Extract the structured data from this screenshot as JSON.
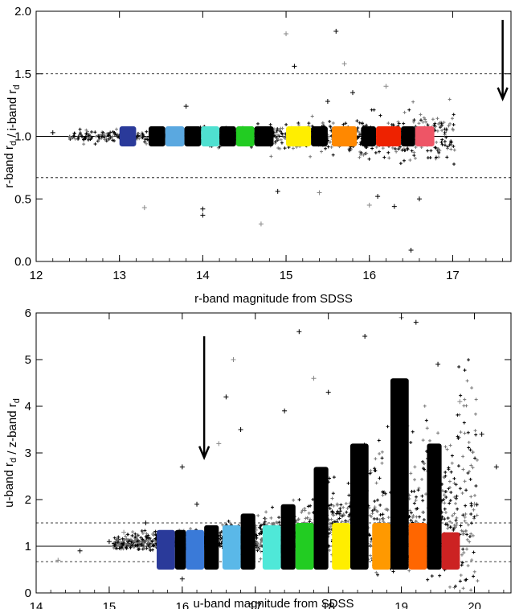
{
  "chart_data": [
    {
      "type": "scatter",
      "xlabel": "r-band magnitude from SDSS",
      "ylabel": "r-band r_d / i-band r_d",
      "xlim": [
        12,
        17.7
      ],
      "ylim": [
        0,
        2.0
      ],
      "xticks": [
        12,
        13,
        14,
        15,
        16,
        17
      ],
      "yticks": [
        0.0,
        0.5,
        1.0,
        1.5,
        2.0
      ],
      "ytick_labels": [
        "0.0",
        "0.5",
        "1.0",
        "1.5",
        "2.0"
      ],
      "reference_line": 1.0,
      "dashed_lines": [
        1.5,
        0.67
      ],
      "arrow": {
        "x": 17.6,
        "y_from": 1.93,
        "y_to": 1.3
      },
      "bins": [
        {
          "x0": 13.0,
          "x1": 13.2,
          "color": "#2a3a9a"
        },
        {
          "x0": 13.35,
          "x1": 13.55,
          "color": "#000000"
        },
        {
          "x0": 13.55,
          "x1": 13.78,
          "color": "#5aa8e0"
        },
        {
          "x0": 13.78,
          "x1": 13.98,
          "color": "#000000"
        },
        {
          "x0": 13.98,
          "x1": 14.2,
          "color": "#4fe0d0"
        },
        {
          "x0": 14.2,
          "x1": 14.4,
          "color": "#000000"
        },
        {
          "x0": 14.4,
          "x1": 14.62,
          "color": "#22cc22"
        },
        {
          "x0": 14.62,
          "x1": 14.85,
          "color": "#000000"
        },
        {
          "x0": 15.0,
          "x1": 15.3,
          "color": "#ffee00"
        },
        {
          "x0": 15.3,
          "x1": 15.5,
          "color": "#000000"
        },
        {
          "x0": 15.55,
          "x1": 15.85,
          "color": "#ff8800"
        },
        {
          "x0": 15.9,
          "x1": 16.08,
          "color": "#000000"
        },
        {
          "x0": 16.08,
          "x1": 16.38,
          "color": "#ee2200"
        },
        {
          "x0": 16.38,
          "x1": 16.55,
          "color": "#000000"
        },
        {
          "x0": 16.55,
          "x1": 16.78,
          "color": "#ee5566"
        }
      ],
      "bin_y": [
        0.92,
        1.08
      ],
      "outliers": [
        [
          15.0,
          1.82
        ],
        [
          15.6,
          1.84
        ],
        [
          15.1,
          1.56
        ],
        [
          15.7,
          1.58
        ],
        [
          13.8,
          1.24
        ],
        [
          12.2,
          1.03
        ],
        [
          13.3,
          0.43
        ],
        [
          14.0,
          0.42
        ],
        [
          14.0,
          0.37
        ],
        [
          14.7,
          0.3
        ],
        [
          16.3,
          0.44
        ],
        [
          16.5,
          0.09
        ],
        [
          16.0,
          0.45
        ],
        [
          16.1,
          0.52
        ],
        [
          16.6,
          0.5
        ],
        [
          15.4,
          0.55
        ],
        [
          14.9,
          0.56
        ],
        [
          15.8,
          1.35
        ],
        [
          16.2,
          1.4
        ],
        [
          15.5,
          1.28
        ]
      ]
    },
    {
      "type": "scatter",
      "xlabel": "u-band magnitude from SDSS",
      "ylabel": "u-band r_d / z-band r_d",
      "xlim": [
        14,
        20.5
      ],
      "ylim": [
        0,
        6
      ],
      "xticks": [
        14,
        15,
        16,
        17,
        18,
        19,
        20
      ],
      "yticks": [
        0,
        1,
        2,
        3,
        4,
        5,
        6
      ],
      "ytick_labels": [
        "0",
        "1",
        "2",
        "3",
        "4",
        "5",
        "6"
      ],
      "reference_line": 1.0,
      "dashed_lines": [
        1.5,
        0.67
      ],
      "arrow": {
        "x": 16.3,
        "y_from": 5.5,
        "y_to": 2.9
      },
      "bins": [
        {
          "x0": 15.65,
          "x1": 15.9,
          "color": "#2a3a9a",
          "ymax": 1.35
        },
        {
          "x0": 15.9,
          "x1": 16.05,
          "color": "#000000",
          "ymax": 1.35
        },
        {
          "x0": 16.05,
          "x1": 16.3,
          "color": "#3a7ad8",
          "ymax": 1.35
        },
        {
          "x0": 16.3,
          "x1": 16.5,
          "color": "#000000",
          "ymax": 1.45
        },
        {
          "x0": 16.55,
          "x1": 16.8,
          "color": "#5ab8e8",
          "ymax": 1.45
        },
        {
          "x0": 16.8,
          "x1": 17.0,
          "color": "#000000",
          "ymax": 1.7
        },
        {
          "x0": 17.1,
          "x1": 17.35,
          "color": "#4fe8d8",
          "ymax": 1.45
        },
        {
          "x0": 17.35,
          "x1": 17.55,
          "color": "#000000",
          "ymax": 1.9
        },
        {
          "x0": 17.55,
          "x1": 17.8,
          "color": "#22cc22",
          "ymax": 1.5
        },
        {
          "x0": 17.8,
          "x1": 18.0,
          "color": "#000000",
          "ymax": 2.7
        },
        {
          "x0": 18.05,
          "x1": 18.3,
          "color": "#ffee00",
          "ymax": 1.5
        },
        {
          "x0": 18.3,
          "x1": 18.55,
          "color": "#000000",
          "ymax": 3.2
        },
        {
          "x0": 18.6,
          "x1": 18.85,
          "color": "#ff9900",
          "ymax": 1.5
        },
        {
          "x0": 18.85,
          "x1": 19.1,
          "color": "#000000",
          "ymax": 4.6
        },
        {
          "x0": 19.1,
          "x1": 19.35,
          "color": "#ff6600",
          "ymax": 1.5
        },
        {
          "x0": 19.35,
          "x1": 19.55,
          "color": "#000000",
          "ymax": 3.2
        },
        {
          "x0": 19.55,
          "x1": 19.8,
          "color": "#cc2222",
          "ymax": 1.3
        }
      ],
      "bin_ymin": 0.5,
      "outliers": [
        [
          14.3,
          0.7
        ],
        [
          14.6,
          0.9
        ],
        [
          15.0,
          1.1
        ],
        [
          15.2,
          1.3
        ],
        [
          16.0,
          2.7
        ],
        [
          16.2,
          1.9
        ],
        [
          16.7,
          5.0
        ],
        [
          16.6,
          4.2
        ],
        [
          16.8,
          3.5
        ],
        [
          16.5,
          3.2
        ],
        [
          17.4,
          3.9
        ],
        [
          17.6,
          5.6
        ],
        [
          17.8,
          4.6
        ],
        [
          18.0,
          4.3
        ],
        [
          18.5,
          5.5
        ],
        [
          19.0,
          5.9
        ],
        [
          19.2,
          5.8
        ],
        [
          19.5,
          4.9
        ],
        [
          19.8,
          4.1
        ],
        [
          20.1,
          3.4
        ],
        [
          20.3,
          2.7
        ],
        [
          20.0,
          1.9
        ],
        [
          15.5,
          1.5
        ],
        [
          16.0,
          0.3
        ]
      ]
    }
  ]
}
